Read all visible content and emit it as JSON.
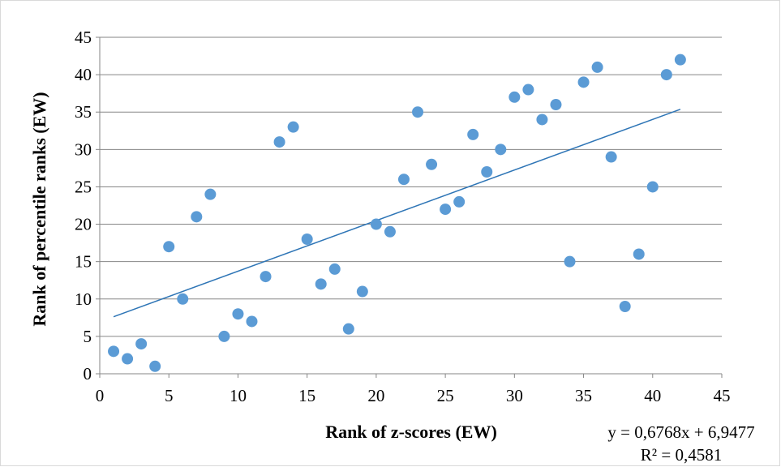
{
  "chart_data": {
    "type": "scatter",
    "xlabel": "Rank of z-scores (EW)",
    "ylabel": "Rank of percentile ranks (EW)",
    "xlim": [
      0,
      45
    ],
    "ylim": [
      0,
      45
    ],
    "x_ticks": [
      0,
      5,
      10,
      15,
      20,
      25,
      30,
      35,
      40,
      45
    ],
    "y_ticks": [
      0,
      5,
      10,
      15,
      20,
      25,
      30,
      35,
      40,
      45
    ],
    "grid": "horizontal",
    "marker_color": "#5b9bd5",
    "trendline_color": "#2e75b6",
    "series": [
      {
        "x": [
          1,
          2,
          3,
          4,
          5,
          6,
          7,
          8,
          9,
          10,
          11,
          12,
          13,
          14,
          15,
          16,
          17,
          18,
          19,
          20,
          21,
          22,
          23,
          24,
          25,
          26,
          27,
          28,
          29,
          30,
          31,
          32,
          33,
          34,
          35,
          36,
          37,
          38,
          39,
          40,
          41,
          42
        ],
        "y": [
          3,
          2,
          4,
          1,
          17,
          10,
          21,
          24,
          5,
          8,
          7,
          13,
          31,
          33,
          18,
          12,
          14,
          6,
          11,
          20,
          19,
          26,
          35,
          28,
          22,
          23,
          32,
          27,
          30,
          37,
          38,
          34,
          36,
          15,
          39,
          41,
          29,
          9,
          16,
          25,
          40,
          42
        ]
      }
    ],
    "trendline": {
      "slope": 0.6768,
      "intercept": 6.9477,
      "x_range": [
        1,
        42
      ],
      "equation_label": "y = 0,6768x + 6,9477",
      "r2_label": "R² = 0,4581"
    }
  }
}
